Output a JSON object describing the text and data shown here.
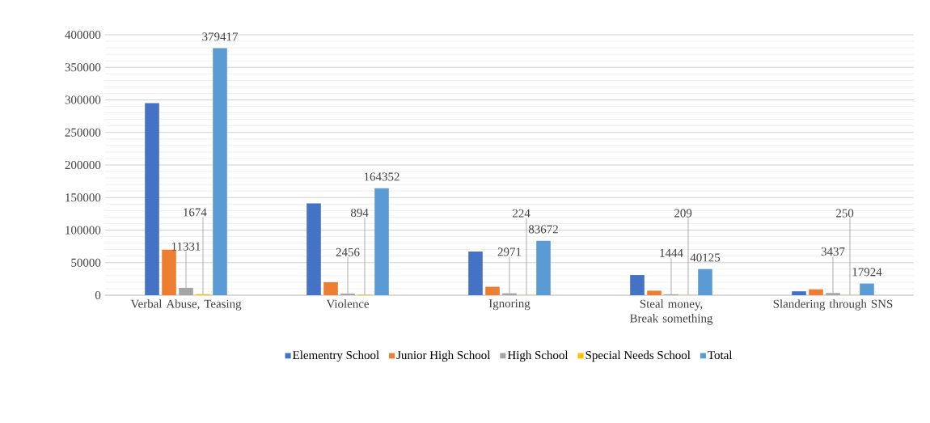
{
  "chart_data": {
    "type": "bar",
    "categories": [
      "Verbal Abuse, Teasing",
      "Violence",
      "Ignoring",
      "Steal money, Break something",
      "Slandering through SNS"
    ],
    "series": [
      {
        "name": "Elementry School",
        "color": "#4472c4",
        "values": [
          295000,
          141000,
          67000,
          31000,
          6000
        ]
      },
      {
        "name": "Junior High School",
        "color": "#ed7d31",
        "values": [
          70000,
          20000,
          13000,
          7000,
          9000
        ]
      },
      {
        "name": "High School",
        "color": "#a5a5a5",
        "values": [
          11331,
          2456,
          2971,
          1444,
          3437
        ],
        "value_labels": [
          "11331",
          "2456",
          "2971",
          "1444",
          "3437"
        ]
      },
      {
        "name": "Special Needs School",
        "color": "#ffc000",
        "values": [
          1674,
          894,
          224,
          209,
          250
        ],
        "value_labels": [
          "1674",
          "894",
          "224",
          "209",
          "250"
        ]
      },
      {
        "name": "Total",
        "color": "#5b9bd5",
        "values": [
          379417,
          164352,
          83672,
          40125,
          17924
        ],
        "value_labels": [
          "379417",
          "164352",
          "83672",
          "40125",
          "17924"
        ]
      }
    ],
    "ylim": [
      0,
      400000
    ],
    "yticks": [
      0,
      50000,
      100000,
      150000,
      200000,
      250000,
      300000,
      350000,
      400000
    ],
    "grid": "y",
    "legend": "bottom"
  }
}
